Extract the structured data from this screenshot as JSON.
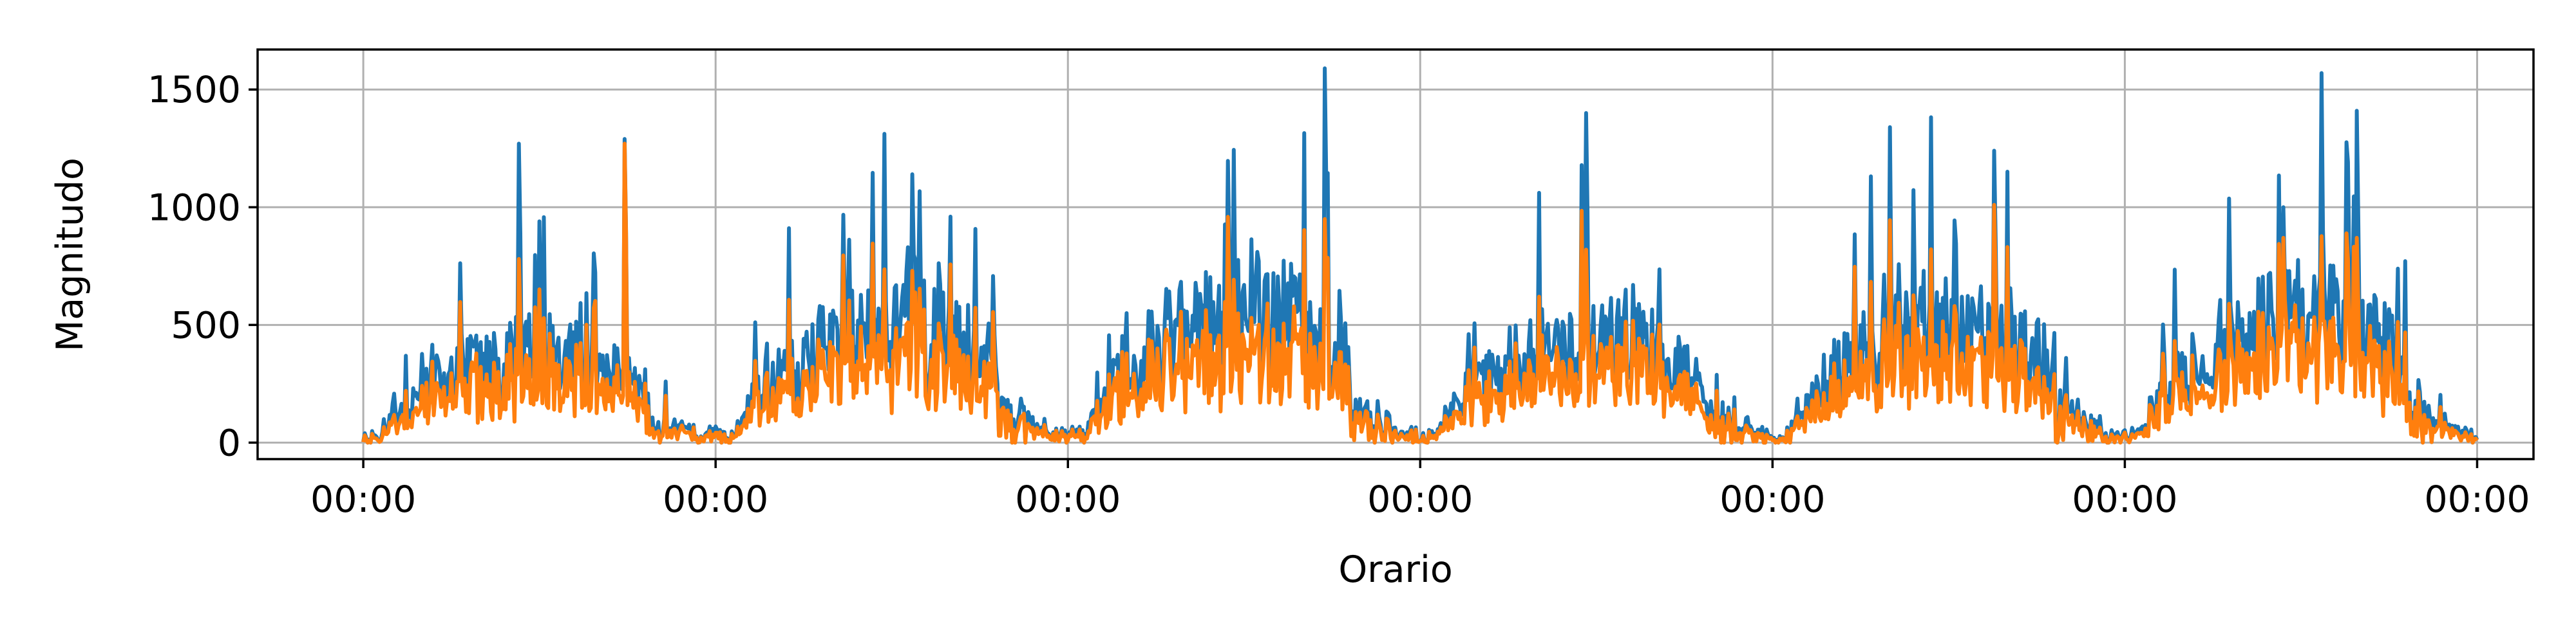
{
  "chart_data": {
    "type": "line",
    "xlabel": "Orario",
    "ylabel": "Magnitudo",
    "x_tick_labels": [
      "00:00",
      "00:00",
      "00:00",
      "00:00",
      "00:00",
      "00:00",
      "00:00"
    ],
    "x_tick_positions_days": [
      0,
      1,
      2,
      3,
      4,
      5,
      6
    ],
    "y_ticks": [
      0,
      500,
      1000,
      1500
    ],
    "xlim_days": [
      -0.3,
      6.16
    ],
    "ylim": [
      -70,
      1670
    ],
    "grid": true,
    "legend": "none",
    "samples_per_day": 240,
    "series": [
      {
        "color": "#1f77b4",
        "values": []
      },
      {
        "color": "#ff7f0e",
        "values": []
      }
    ]
  }
}
